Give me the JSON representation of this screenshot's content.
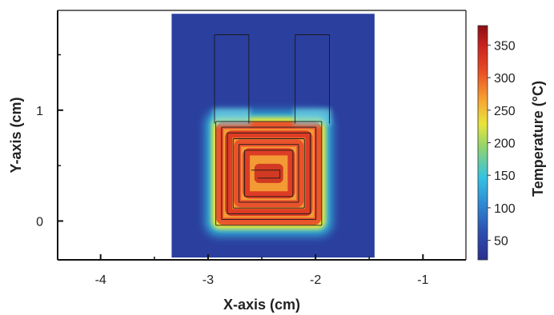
{
  "chart_data": {
    "type": "heatmap",
    "title": "",
    "xlabel": "X-axis (cm)",
    "ylabel": "Y-axis (cm)",
    "xlim": [
      -4.4,
      -0.6
    ],
    "ylim": [
      -0.35,
      1.9
    ],
    "x_ticks": [
      -4,
      -3,
      -2,
      -1
    ],
    "x_tick_labels": [
      "-4",
      "-3",
      "-2",
      "-1"
    ],
    "y_ticks": [
      0,
      1
    ],
    "y_tick_labels": [
      "0",
      "1"
    ],
    "grid": false,
    "colorbar": {
      "label": "Temperature (°C)",
      "range": [
        20,
        380
      ],
      "ticks": [
        50,
        100,
        150,
        200,
        250,
        300,
        350
      ],
      "tick_labels": [
        "50",
        "100",
        "150",
        "200",
        "250",
        "300",
        "350"
      ],
      "colormap": "jet"
    },
    "domain_extent": {
      "x": [
        -3.34,
        -1.45
      ],
      "y": [
        -0.33,
        1.87
      ]
    },
    "background_temperature": 25,
    "heater_region": {
      "x": [
        -2.95,
        -1.92
      ],
      "y": [
        -0.06,
        0.92
      ],
      "peak_temperature": 370,
      "edge_temperature": 220
    },
    "leads": [
      {
        "x": [
          -2.94,
          -2.62
        ],
        "y": [
          0.88,
          1.68
        ]
      },
      {
        "x": [
          -2.19,
          -1.87
        ],
        "y": [
          0.88,
          1.68
        ]
      }
    ],
    "trace_outline_x_segments": [
      -2.93,
      -2.87,
      -2.8,
      -2.73,
      -2.66,
      -2.59,
      -2.52,
      -2.45,
      -2.38,
      -2.31,
      -2.24,
      -2.17,
      -2.1,
      -2.03,
      -1.96
    ],
    "colors": {
      "low": "#2b3990",
      "mid": "#27c2e0",
      "high": "#e83524",
      "max": "#8b0f12",
      "axis": "#111111"
    }
  }
}
